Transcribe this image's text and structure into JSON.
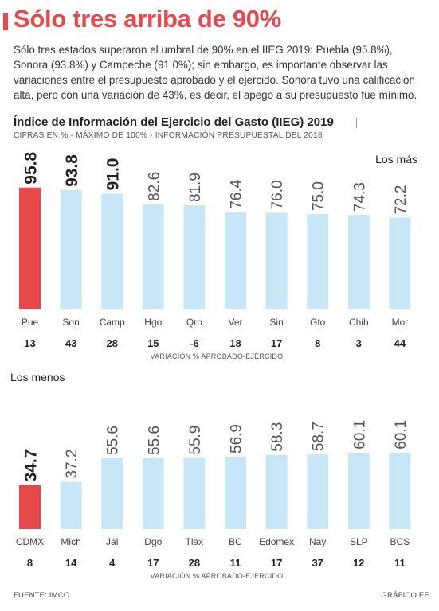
{
  "headline": "Sólo tres arriba de 90%",
  "intro": "Sólo tres estados superaron el umbral de 90% en el IIEG 2019: Puebla (95.8%), Sonora (93.8%) y Campeche (91.0%); sin embargo, es importante observar las variaciones entre el presupuesto aprobado y el ejercido. Sonora tuvo una calificación alta, pero con una variación de 43%, es decir, el apego a su presupuesto fue mínimo.",
  "chart_title": "Índice de Información del Ejercicio del Gasto (IIEG) 2019",
  "chart_subtitle": "CIFRAS EN % - MÁXIMO DE 100% - INFORMACIÓN PRESUPUESTAL DEL 2018",
  "source": "FUENTE: IMCO",
  "credit": "GRÁFICO EE",
  "colors": {
    "highlight": "#e8484b",
    "bar": "#c9e6f7"
  },
  "chart_data": [
    {
      "type": "bar",
      "panel_label": "Los más",
      "categories": [
        "Pue",
        "Son",
        "Camp",
        "Hgo",
        "Qro",
        "Ver",
        "Sin",
        "Gto",
        "Chih",
        "Mor"
      ],
      "values": [
        95.8,
        93.8,
        91.0,
        82.6,
        81.9,
        76.4,
        76.0,
        75.0,
        74.3,
        72.2
      ],
      "value_labels": [
        "95.8",
        "93.8",
        "91.0",
        "82.6",
        "81.9",
        "76.4",
        "76.0",
        "75.0",
        "74.3",
        "72.2"
      ],
      "bold_labels": [
        true,
        true,
        true,
        false,
        false,
        false,
        false,
        false,
        false,
        false
      ],
      "highlight_index": 0,
      "variation": [
        "13",
        "43",
        "28",
        "15",
        "-6",
        "18",
        "17",
        "8",
        "3",
        "44"
      ],
      "variation_label": "VARIACIÓN % APROBADO-EJERCIDO",
      "ylim": [
        0,
        100
      ]
    },
    {
      "type": "bar",
      "panel_label": "Los menos",
      "categories": [
        "CDMX",
        "Mich",
        "Jal",
        "Dgo",
        "Tlax",
        "BC",
        "Edomex",
        "Nay",
        "SLP",
        "BCS"
      ],
      "values": [
        34.7,
        37.2,
        55.6,
        55.6,
        55.9,
        56.9,
        58.3,
        58.7,
        60.1,
        60.1
      ],
      "value_labels": [
        "34.7",
        "37.2",
        "55.6",
        "55.6",
        "55.9",
        "56.9",
        "58.3",
        "58.7",
        "60.1",
        "60.1"
      ],
      "bold_labels": [
        true,
        false,
        false,
        false,
        false,
        false,
        false,
        false,
        false,
        false
      ],
      "highlight_index": 0,
      "variation": [
        "8",
        "14",
        "4",
        "17",
        "28",
        "11",
        "17",
        "37",
        "12",
        "11"
      ],
      "variation_label": "VARIACIÓN % APROBADO-EJERCIDO",
      "ylim": [
        0,
        100
      ]
    }
  ]
}
